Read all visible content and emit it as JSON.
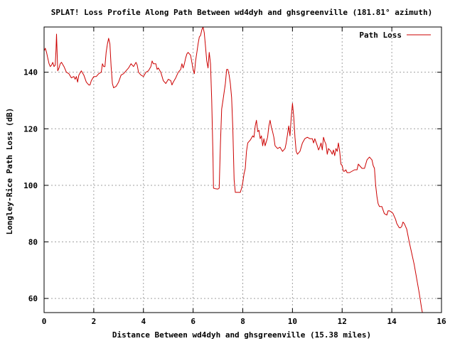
{
  "chart_data": {
    "type": "line",
    "title": "SPLAT! Loss Profile Along Path Between wd4dyh and ghsgreenville (181.81° azimuth)",
    "xlabel": "Distance Between wd4dyh and ghsgreenville (15.38 miles)",
    "ylabel": "Longley-Rice Path Loss (dB)",
    "xlim": [
      0,
      16
    ],
    "ylim": [
      55,
      156
    ],
    "x_ticks": [
      0,
      2,
      4,
      6,
      8,
      10,
      12,
      14,
      16
    ],
    "y_ticks": [
      60,
      80,
      100,
      120,
      140
    ],
    "grid": true,
    "legend": "top-right",
    "series": [
      {
        "name": "Path Loss",
        "color": "#cc0000",
        "points": [
          [
            0.0,
            147.5
          ],
          [
            0.05,
            148.5
          ],
          [
            0.1,
            147
          ],
          [
            0.15,
            145
          ],
          [
            0.2,
            143
          ],
          [
            0.25,
            142
          ],
          [
            0.3,
            142.5
          ],
          [
            0.35,
            143.5
          ],
          [
            0.4,
            142
          ],
          [
            0.45,
            142.5
          ],
          [
            0.48,
            148
          ],
          [
            0.5,
            153.5
          ],
          [
            0.52,
            148
          ],
          [
            0.55,
            140.5
          ],
          [
            0.6,
            141.5
          ],
          [
            0.65,
            143
          ],
          [
            0.7,
            143.5
          ],
          [
            0.8,
            142
          ],
          [
            0.9,
            140
          ],
          [
            1.0,
            139.5
          ],
          [
            1.1,
            138
          ],
          [
            1.2,
            138.5
          ],
          [
            1.25,
            137.5
          ],
          [
            1.3,
            138.5
          ],
          [
            1.35,
            136.5
          ],
          [
            1.4,
            139
          ],
          [
            1.5,
            140.5
          ],
          [
            1.6,
            139
          ],
          [
            1.7,
            136.5
          ],
          [
            1.8,
            135.5
          ],
          [
            1.85,
            135.5
          ],
          [
            1.9,
            137
          ],
          [
            2.0,
            138.5
          ],
          [
            2.1,
            138.5
          ],
          [
            2.2,
            139.5
          ],
          [
            2.3,
            140
          ],
          [
            2.35,
            143
          ],
          [
            2.4,
            142
          ],
          [
            2.45,
            142
          ],
          [
            2.5,
            147
          ],
          [
            2.55,
            150
          ],
          [
            2.6,
            152
          ],
          [
            2.65,
            150
          ],
          [
            2.7,
            142
          ],
          [
            2.75,
            136
          ],
          [
            2.8,
            134.5
          ],
          [
            2.9,
            135
          ],
          [
            3.0,
            136.5
          ],
          [
            3.1,
            139
          ],
          [
            3.2,
            139.5
          ],
          [
            3.3,
            140.5
          ],
          [
            3.4,
            141.5
          ],
          [
            3.5,
            143
          ],
          [
            3.6,
            142
          ],
          [
            3.7,
            143.5
          ],
          [
            3.75,
            142.5
          ],
          [
            3.8,
            140
          ],
          [
            3.9,
            139
          ],
          [
            4.0,
            138.5
          ],
          [
            4.1,
            140
          ],
          [
            4.2,
            140.5
          ],
          [
            4.3,
            142
          ],
          [
            4.35,
            144
          ],
          [
            4.4,
            143
          ],
          [
            4.5,
            143
          ],
          [
            4.55,
            141
          ],
          [
            4.6,
            141.5
          ],
          [
            4.7,
            140
          ],
          [
            4.8,
            137
          ],
          [
            4.9,
            136
          ],
          [
            5.0,
            137.5
          ],
          [
            5.1,
            137
          ],
          [
            5.15,
            135.5
          ],
          [
            5.2,
            136.5
          ],
          [
            5.3,
            138
          ],
          [
            5.4,
            140
          ],
          [
            5.5,
            141
          ],
          [
            5.55,
            143
          ],
          [
            5.6,
            141.5
          ],
          [
            5.65,
            143
          ],
          [
            5.7,
            145
          ],
          [
            5.75,
            146.5
          ],
          [
            5.8,
            147
          ],
          [
            5.85,
            146.5
          ],
          [
            5.9,
            146
          ],
          [
            6.0,
            141
          ],
          [
            6.05,
            139.5
          ],
          [
            6.1,
            144
          ],
          [
            6.15,
            147
          ],
          [
            6.2,
            150
          ],
          [
            6.25,
            152.5
          ],
          [
            6.3,
            153
          ],
          [
            6.35,
            155
          ],
          [
            6.4,
            156
          ],
          [
            6.45,
            154
          ],
          [
            6.5,
            149
          ],
          [
            6.55,
            144
          ],
          [
            6.6,
            141.5
          ],
          [
            6.65,
            147
          ],
          [
            6.7,
            143
          ],
          [
            6.75,
            130
          ],
          [
            6.8,
            110
          ],
          [
            6.82,
            99
          ],
          [
            6.9,
            98.8
          ],
          [
            7.0,
            98.7
          ],
          [
            7.05,
            99
          ],
          [
            7.1,
            115
          ],
          [
            7.15,
            127
          ],
          [
            7.2,
            130
          ],
          [
            7.3,
            136
          ],
          [
            7.35,
            141
          ],
          [
            7.4,
            141
          ],
          [
            7.45,
            139
          ],
          [
            7.5,
            136
          ],
          [
            7.55,
            131
          ],
          [
            7.6,
            120
          ],
          [
            7.65,
            102
          ],
          [
            7.7,
            97.5
          ],
          [
            7.8,
            97.5
          ],
          [
            7.9,
            97.5
          ],
          [
            7.95,
            99
          ],
          [
            8.0,
            101
          ],
          [
            8.05,
            104
          ],
          [
            8.1,
            106
          ],
          [
            8.15,
            112
          ],
          [
            8.2,
            115
          ],
          [
            8.3,
            116
          ],
          [
            8.4,
            117.5
          ],
          [
            8.45,
            117
          ],
          [
            8.5,
            121
          ],
          [
            8.55,
            123
          ],
          [
            8.6,
            119
          ],
          [
            8.65,
            119.5
          ],
          [
            8.7,
            116.5
          ],
          [
            8.75,
            117.5
          ],
          [
            8.8,
            114
          ],
          [
            8.85,
            116.5
          ],
          [
            8.9,
            114
          ],
          [
            8.95,
            115.5
          ],
          [
            9.0,
            117
          ],
          [
            9.05,
            121
          ],
          [
            9.1,
            123
          ],
          [
            9.15,
            120.5
          ],
          [
            9.2,
            119
          ],
          [
            9.25,
            117
          ],
          [
            9.3,
            114
          ],
          [
            9.4,
            113
          ],
          [
            9.5,
            113.5
          ],
          [
            9.6,
            112
          ],
          [
            9.7,
            113
          ],
          [
            9.75,
            115
          ],
          [
            9.8,
            118
          ],
          [
            9.85,
            121
          ],
          [
            9.9,
            117.5
          ],
          [
            9.95,
            124
          ],
          [
            10.0,
            129
          ],
          [
            10.05,
            124.5
          ],
          [
            10.1,
            117
          ],
          [
            10.15,
            112
          ],
          [
            10.2,
            111
          ],
          [
            10.3,
            112
          ],
          [
            10.4,
            115
          ],
          [
            10.5,
            116.5
          ],
          [
            10.6,
            117
          ],
          [
            10.7,
            116.5
          ],
          [
            10.8,
            116.5
          ],
          [
            10.85,
            115
          ],
          [
            10.9,
            116.5
          ],
          [
            11.0,
            114
          ],
          [
            11.05,
            112.5
          ],
          [
            11.1,
            113.5
          ],
          [
            11.15,
            115
          ],
          [
            11.2,
            112.5
          ],
          [
            11.25,
            117
          ],
          [
            11.3,
            115.5
          ],
          [
            11.35,
            114.5
          ],
          [
            11.4,
            111
          ],
          [
            11.45,
            113
          ],
          [
            11.5,
            112.5
          ],
          [
            11.55,
            112
          ],
          [
            11.6,
            111
          ],
          [
            11.65,
            112.5
          ],
          [
            11.7,
            110.5
          ],
          [
            11.75,
            113
          ],
          [
            11.8,
            112
          ],
          [
            11.85,
            115
          ],
          [
            11.9,
            112
          ],
          [
            11.95,
            107.5
          ],
          [
            12.0,
            107
          ],
          [
            12.05,
            105
          ],
          [
            12.1,
            105
          ],
          [
            12.15,
            105.5
          ],
          [
            12.2,
            104.5
          ],
          [
            12.3,
            104.5
          ],
          [
            12.4,
            105
          ],
          [
            12.5,
            105.5
          ],
          [
            12.6,
            105.5
          ],
          [
            12.65,
            107.5
          ],
          [
            12.7,
            107
          ],
          [
            12.8,
            106
          ],
          [
            12.9,
            106
          ],
          [
            13.0,
            109
          ],
          [
            13.05,
            109.5
          ],
          [
            13.1,
            110
          ],
          [
            13.15,
            109.5
          ],
          [
            13.2,
            109
          ],
          [
            13.25,
            107
          ],
          [
            13.3,
            106
          ],
          [
            13.35,
            100
          ],
          [
            13.4,
            96
          ],
          [
            13.45,
            93.5
          ],
          [
            13.5,
            92.5
          ],
          [
            13.6,
            92.5
          ],
          [
            13.7,
            90
          ],
          [
            13.8,
            89.5
          ],
          [
            13.85,
            91
          ],
          [
            13.9,
            91
          ],
          [
            14.0,
            90.5
          ],
          [
            14.05,
            90
          ],
          [
            14.1,
            89
          ],
          [
            14.15,
            88
          ],
          [
            14.2,
            86.5
          ],
          [
            14.3,
            85
          ],
          [
            14.35,
            85
          ],
          [
            14.4,
            85.5
          ],
          [
            14.45,
            87
          ],
          [
            14.5,
            86.5
          ],
          [
            14.6,
            84.5
          ],
          [
            14.7,
            80
          ],
          [
            14.8,
            76
          ],
          [
            14.9,
            72
          ],
          [
            15.0,
            67
          ],
          [
            15.1,
            62
          ],
          [
            15.2,
            56.5
          ],
          [
            15.23,
            55
          ]
        ]
      }
    ]
  }
}
